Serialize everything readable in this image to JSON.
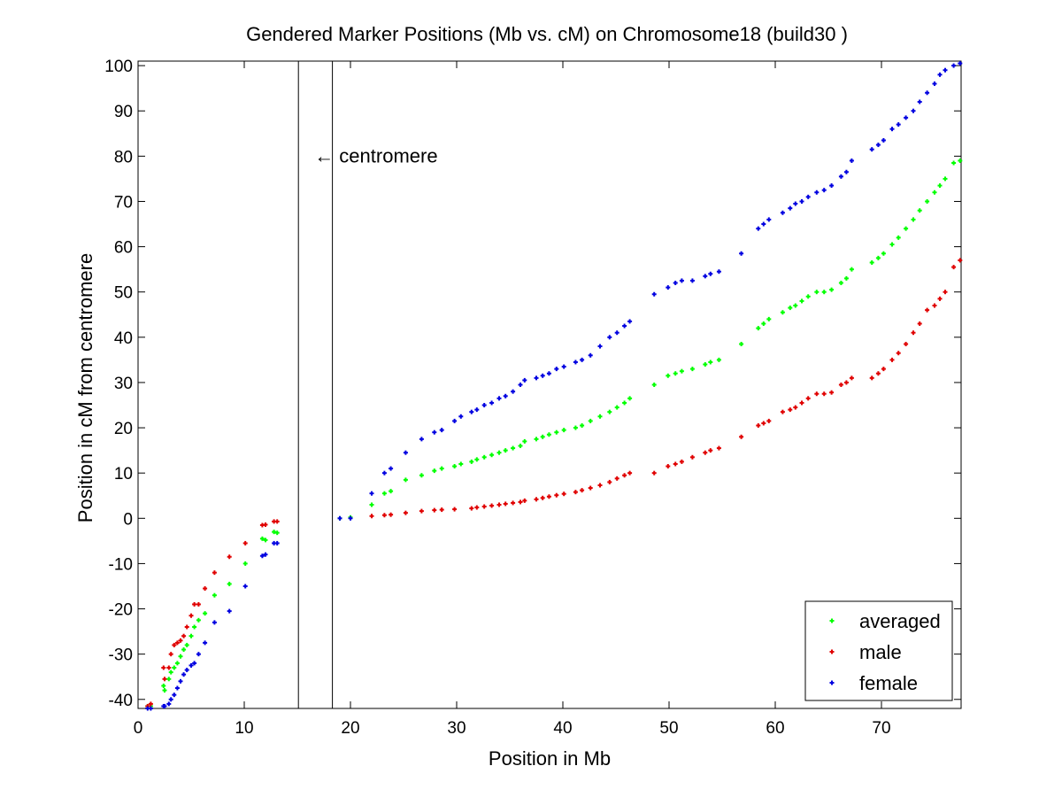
{
  "chart_data": {
    "type": "scatter",
    "title": "Gendered Marker Positions (Mb vs. cM) on Chromosome18 (build30 )",
    "xlabel": "Position in Mb",
    "ylabel": "Position in cM from centromere",
    "xlim": [
      0,
      77.5
    ],
    "ylim": [
      -42,
      101
    ],
    "xticks": [
      0,
      10,
      20,
      30,
      40,
      50,
      60,
      70
    ],
    "yticks": [
      -40,
      -30,
      -20,
      -10,
      0,
      10,
      20,
      30,
      40,
      50,
      60,
      70,
      80,
      90,
      100
    ],
    "grid": false,
    "legend_position": "bottom-right",
    "centromere": {
      "lines": [
        15.1,
        18.3
      ],
      "label": "← centromere",
      "label_x": 16.6,
      "label_y": 80
    },
    "series": [
      {
        "name": "averaged",
        "color": "#00ff00",
        "x": [
          0.9,
          1.2,
          2.4,
          2.5,
          2.9,
          3.1,
          3.4,
          3.7,
          4.0,
          4.3,
          4.6,
          5.0,
          5.3,
          5.7,
          6.3,
          7.2,
          8.6,
          10.1,
          11.7,
          12.0,
          12.8,
          13.1,
          19.0,
          20.0,
          22.0,
          23.2,
          23.8,
          25.2,
          26.7,
          27.9,
          28.6,
          29.8,
          30.4,
          31.4,
          31.9,
          32.6,
          33.3,
          34.0,
          34.6,
          35.3,
          36.0,
          36.4,
          37.5,
          38.1,
          38.7,
          39.4,
          40.1,
          41.2,
          41.8,
          42.6,
          43.5,
          44.4,
          45.1,
          45.8,
          46.3,
          48.6,
          49.9,
          50.6,
          51.2,
          52.2,
          53.4,
          53.9,
          54.7,
          56.8,
          58.4,
          58.9,
          59.4,
          60.7,
          61.4,
          61.9,
          62.5,
          63.1,
          63.9,
          64.6,
          65.3,
          66.2,
          66.7,
          67.2,
          69.1,
          69.7,
          70.2,
          71.0,
          71.6,
          72.3,
          73.0,
          73.6,
          74.3,
          75.0,
          75.5,
          76.0,
          76.8,
          77.4
        ],
        "y": [
          -41.5,
          -41.5,
          -37,
          -38,
          -35.5,
          -34,
          -33,
          -32,
          -30.5,
          -29,
          -28,
          -26,
          -24,
          -22.5,
          -21,
          -17,
          -14.5,
          -10,
          -4.5,
          -4.8,
          -3,
          -3.2,
          0,
          0.2,
          3,
          5.5,
          6,
          8.5,
          9.5,
          10.5,
          11,
          11.5,
          12,
          12.5,
          13,
          13.5,
          14,
          14.5,
          15,
          15.5,
          16,
          17,
          17.5,
          18,
          18.5,
          19,
          19.5,
          20,
          20.5,
          21.5,
          22.5,
          23.5,
          24.5,
          25.5,
          26.5,
          29.5,
          31.5,
          32,
          32.5,
          33,
          34,
          34.5,
          35,
          38.5,
          42,
          43,
          44,
          45.5,
          46.5,
          47,
          48,
          49,
          50,
          50,
          50.5,
          52,
          53,
          55,
          56.5,
          57.5,
          58.5,
          60.5,
          62,
          64,
          66,
          68,
          70,
          72,
          73.5,
          75,
          78.5,
          79
        ]
      },
      {
        "name": "male",
        "color": "#e00000",
        "x": [
          0.9,
          1.2,
          2.4,
          2.5,
          2.9,
          3.1,
          3.4,
          3.7,
          4.0,
          4.3,
          4.6,
          5.0,
          5.3,
          5.7,
          6.3,
          7.2,
          8.6,
          10.1,
          11.7,
          12.0,
          12.8,
          13.1,
          22.0,
          23.2,
          23.8,
          25.2,
          26.7,
          27.9,
          28.6,
          29.8,
          31.4,
          31.9,
          32.6,
          33.3,
          34.0,
          34.6,
          35.3,
          36.0,
          36.4,
          37.5,
          38.1,
          38.7,
          39.4,
          40.1,
          41.2,
          41.8,
          42.6,
          43.5,
          44.4,
          45.1,
          45.8,
          46.3,
          48.6,
          49.9,
          50.6,
          51.2,
          52.2,
          53.4,
          53.9,
          54.7,
          56.8,
          58.4,
          58.9,
          59.4,
          60.7,
          61.4,
          61.9,
          62.5,
          63.1,
          63.9,
          64.6,
          65.3,
          66.2,
          66.7,
          67.2,
          69.1,
          69.7,
          70.2,
          71.0,
          71.6,
          72.3,
          73.0,
          73.6,
          74.3,
          75.0,
          75.5,
          76.0,
          76.8,
          77.4
        ],
        "y": [
          -41.5,
          -41,
          -33,
          -35.5,
          -33,
          -30,
          -28,
          -27.5,
          -27,
          -26,
          -24,
          -21.5,
          -19,
          -19,
          -15.5,
          -12,
          -8.5,
          -5.5,
          -1.5,
          -1.4,
          -0.7,
          -0.7,
          0.5,
          0.7,
          0.8,
          1.2,
          1.6,
          1.8,
          1.9,
          2.0,
          2.2,
          2.4,
          2.6,
          2.8,
          3.0,
          3.2,
          3.4,
          3.6,
          3.9,
          4.2,
          4.5,
          4.8,
          5.1,
          5.4,
          5.8,
          6.2,
          6.7,
          7.3,
          8.0,
          8.8,
          9.5,
          10.0,
          10.0,
          11.5,
          12.0,
          12.5,
          13.5,
          14.5,
          15.0,
          15.5,
          18.0,
          20.5,
          21.0,
          21.5,
          23.5,
          24.0,
          24.5,
          25.5,
          26.5,
          27.5,
          27.5,
          27.8,
          29.5,
          30.0,
          31.0,
          31.0,
          32.0,
          33.0,
          35.0,
          36.5,
          38.5,
          41.0,
          43.0,
          46.0,
          47.0,
          48.5,
          50.0,
          55.5,
          57.0
        ]
      },
      {
        "name": "female",
        "color": "#0000e0",
        "x": [
          0.9,
          1.2,
          2.4,
          2.5,
          2.9,
          3.1,
          3.4,
          3.7,
          4.0,
          4.3,
          4.6,
          5.0,
          5.3,
          5.7,
          6.3,
          7.2,
          8.6,
          10.1,
          11.7,
          12.0,
          12.8,
          13.1,
          19.0,
          20.0,
          22.0,
          23.2,
          23.8,
          25.2,
          26.7,
          27.9,
          28.6,
          29.8,
          30.4,
          31.4,
          31.9,
          32.6,
          33.3,
          34.0,
          34.6,
          35.3,
          36.0,
          36.4,
          37.5,
          38.1,
          38.7,
          39.4,
          40.1,
          41.2,
          41.8,
          42.6,
          43.5,
          44.4,
          45.1,
          45.8,
          46.3,
          48.6,
          49.9,
          50.6,
          51.2,
          52.2,
          53.4,
          53.9,
          54.7,
          56.8,
          58.4,
          58.9,
          59.4,
          60.7,
          61.4,
          61.9,
          62.5,
          63.1,
          63.9,
          64.6,
          65.3,
          66.2,
          66.7,
          67.2,
          69.1,
          69.7,
          70.2,
          71.0,
          71.6,
          72.3,
          73.0,
          73.6,
          74.3,
          75.0,
          75.5,
          76.0,
          76.8,
          77.4
        ],
        "y": [
          -42,
          -42,
          -41.5,
          -41.5,
          -41,
          -40,
          -39,
          -37.5,
          -36,
          -34.5,
          -33.5,
          -32.5,
          -32,
          -30,
          -27.5,
          -23,
          -20.5,
          -15,
          -8.3,
          -8,
          -5.5,
          -5.5,
          0,
          0,
          5.5,
          10,
          11,
          14.5,
          17.5,
          19,
          19.5,
          21.5,
          22.5,
          23.5,
          24,
          25,
          25.5,
          26.5,
          27,
          28,
          29.5,
          30.5,
          31,
          31.5,
          32,
          33,
          33.5,
          34.5,
          35,
          36,
          38,
          40,
          41,
          42.5,
          43.5,
          49.5,
          51,
          52,
          52.5,
          52.5,
          53.5,
          54,
          54.5,
          58.5,
          64,
          65,
          66,
          67.5,
          68.5,
          69.5,
          70,
          71,
          72,
          72.5,
          73.5,
          75.5,
          76.5,
          79,
          81.5,
          82.5,
          83.5,
          86,
          87,
          88.5,
          90,
          92,
          94,
          96,
          98,
          99,
          100,
          100.5
        ]
      }
    ]
  }
}
